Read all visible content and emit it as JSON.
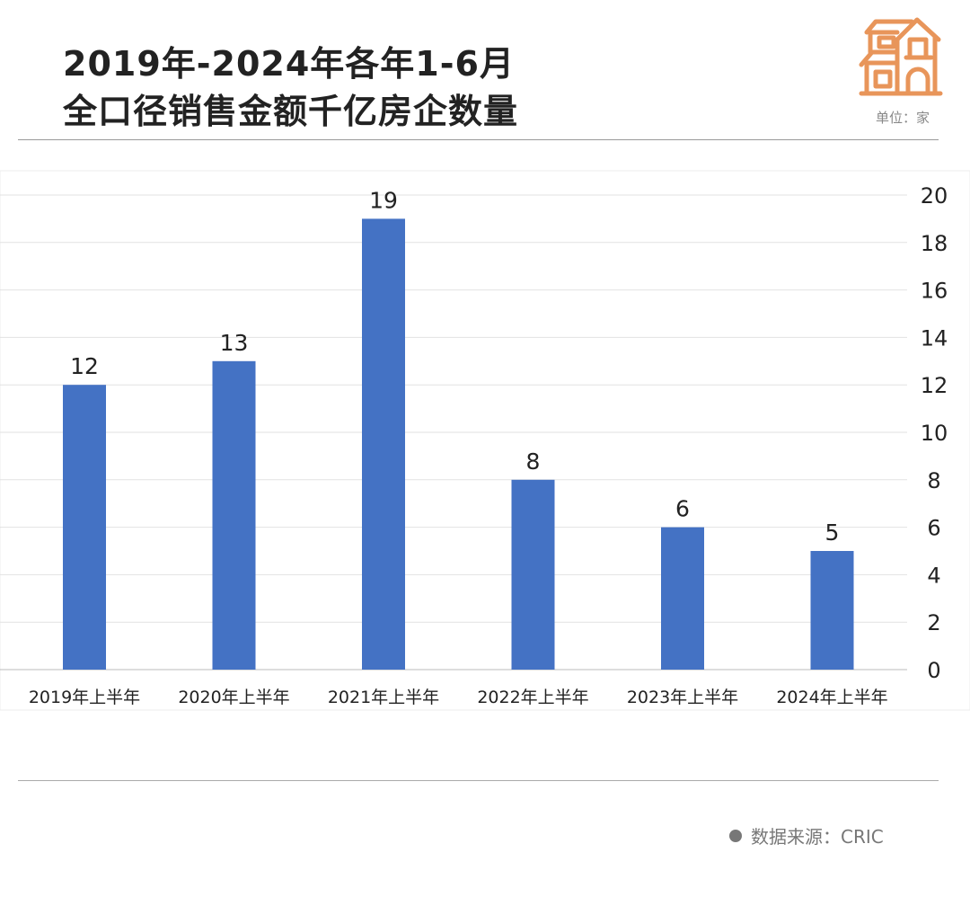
{
  "header": {
    "title_line1": "2019年-2024年各年1-6月",
    "title_line2": "全口径销售金额千亿房企数量",
    "unit": "单位：家",
    "icon": "house-icon"
  },
  "footer": {
    "source": "数据来源：CRIC"
  },
  "colors": {
    "bar": "#4472C4",
    "icon": "#E8955A",
    "grid": "#e2e2e2"
  },
  "chart_data": {
    "type": "bar",
    "title": "2019年-2024年各年1-6月全口径销售金额千亿房企数量",
    "categories": [
      "2019年上半年",
      "2020年上半年",
      "2021年上半年",
      "2022年上半年",
      "2023年上半年",
      "2024年上半年"
    ],
    "values": [
      12,
      13,
      19,
      8,
      6,
      5
    ],
    "data_labels": [
      "12",
      "13",
      "19",
      "8",
      "6",
      "5"
    ],
    "ylim": [
      0,
      20
    ],
    "yticks": [
      "0",
      "2",
      "4",
      "6",
      "8",
      "10",
      "12",
      "14",
      "16",
      "18",
      "20"
    ],
    "y_axis_position": "right",
    "grid": true,
    "xlabel": "",
    "ylabel": ""
  }
}
